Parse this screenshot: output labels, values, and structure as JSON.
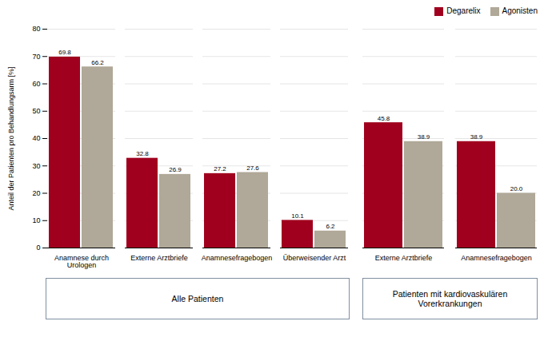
{
  "chart_data": [
    {
      "type": "bar",
      "subtitle": "Alle Patienten",
      "ylabel": "Anteil der Patienten pro Behandlungsarm [%]",
      "categories": [
        "Anamnese durch\nUrologen",
        "Externe Arztbriefe",
        "Anamnesefragebogen",
        "Überweisender Arzt"
      ],
      "series": [
        {
          "name": "Degarelix",
          "color": "#a0001e",
          "values": [
            69.8,
            32.8,
            27.2,
            10.1
          ]
        },
        {
          "name": "Agonisten",
          "color": "#b0a898",
          "values": [
            66.2,
            26.9,
            27.6,
            6.2
          ]
        }
      ],
      "ylim": [
        0,
        80
      ],
      "yticks": [
        0,
        10,
        20,
        30,
        40,
        50,
        60,
        70,
        80
      ],
      "grid": true,
      "data_labels": true
    },
    {
      "type": "bar",
      "subtitle": "Patienten mit kardiovaskulären\nVorerkrankungen",
      "categories": [
        "Externe Arztbriefe",
        "Anamnesefragebogen"
      ],
      "series": [
        {
          "name": "Degarelix",
          "color": "#a0001e",
          "values": [
            45.8,
            38.9
          ]
        },
        {
          "name": "Agonisten",
          "color": "#b0a898",
          "values": [
            38.9,
            20.0
          ],
          "value_labels": [
            "38.9",
            "20.0"
          ]
        }
      ],
      "ylim": [
        0,
        80
      ],
      "yticks": [
        0,
        10,
        20,
        30,
        40,
        50,
        60,
        70,
        80
      ],
      "grid": true,
      "data_labels": true,
      "tick_labels": "x",
      "legend": "upper right"
    }
  ]
}
